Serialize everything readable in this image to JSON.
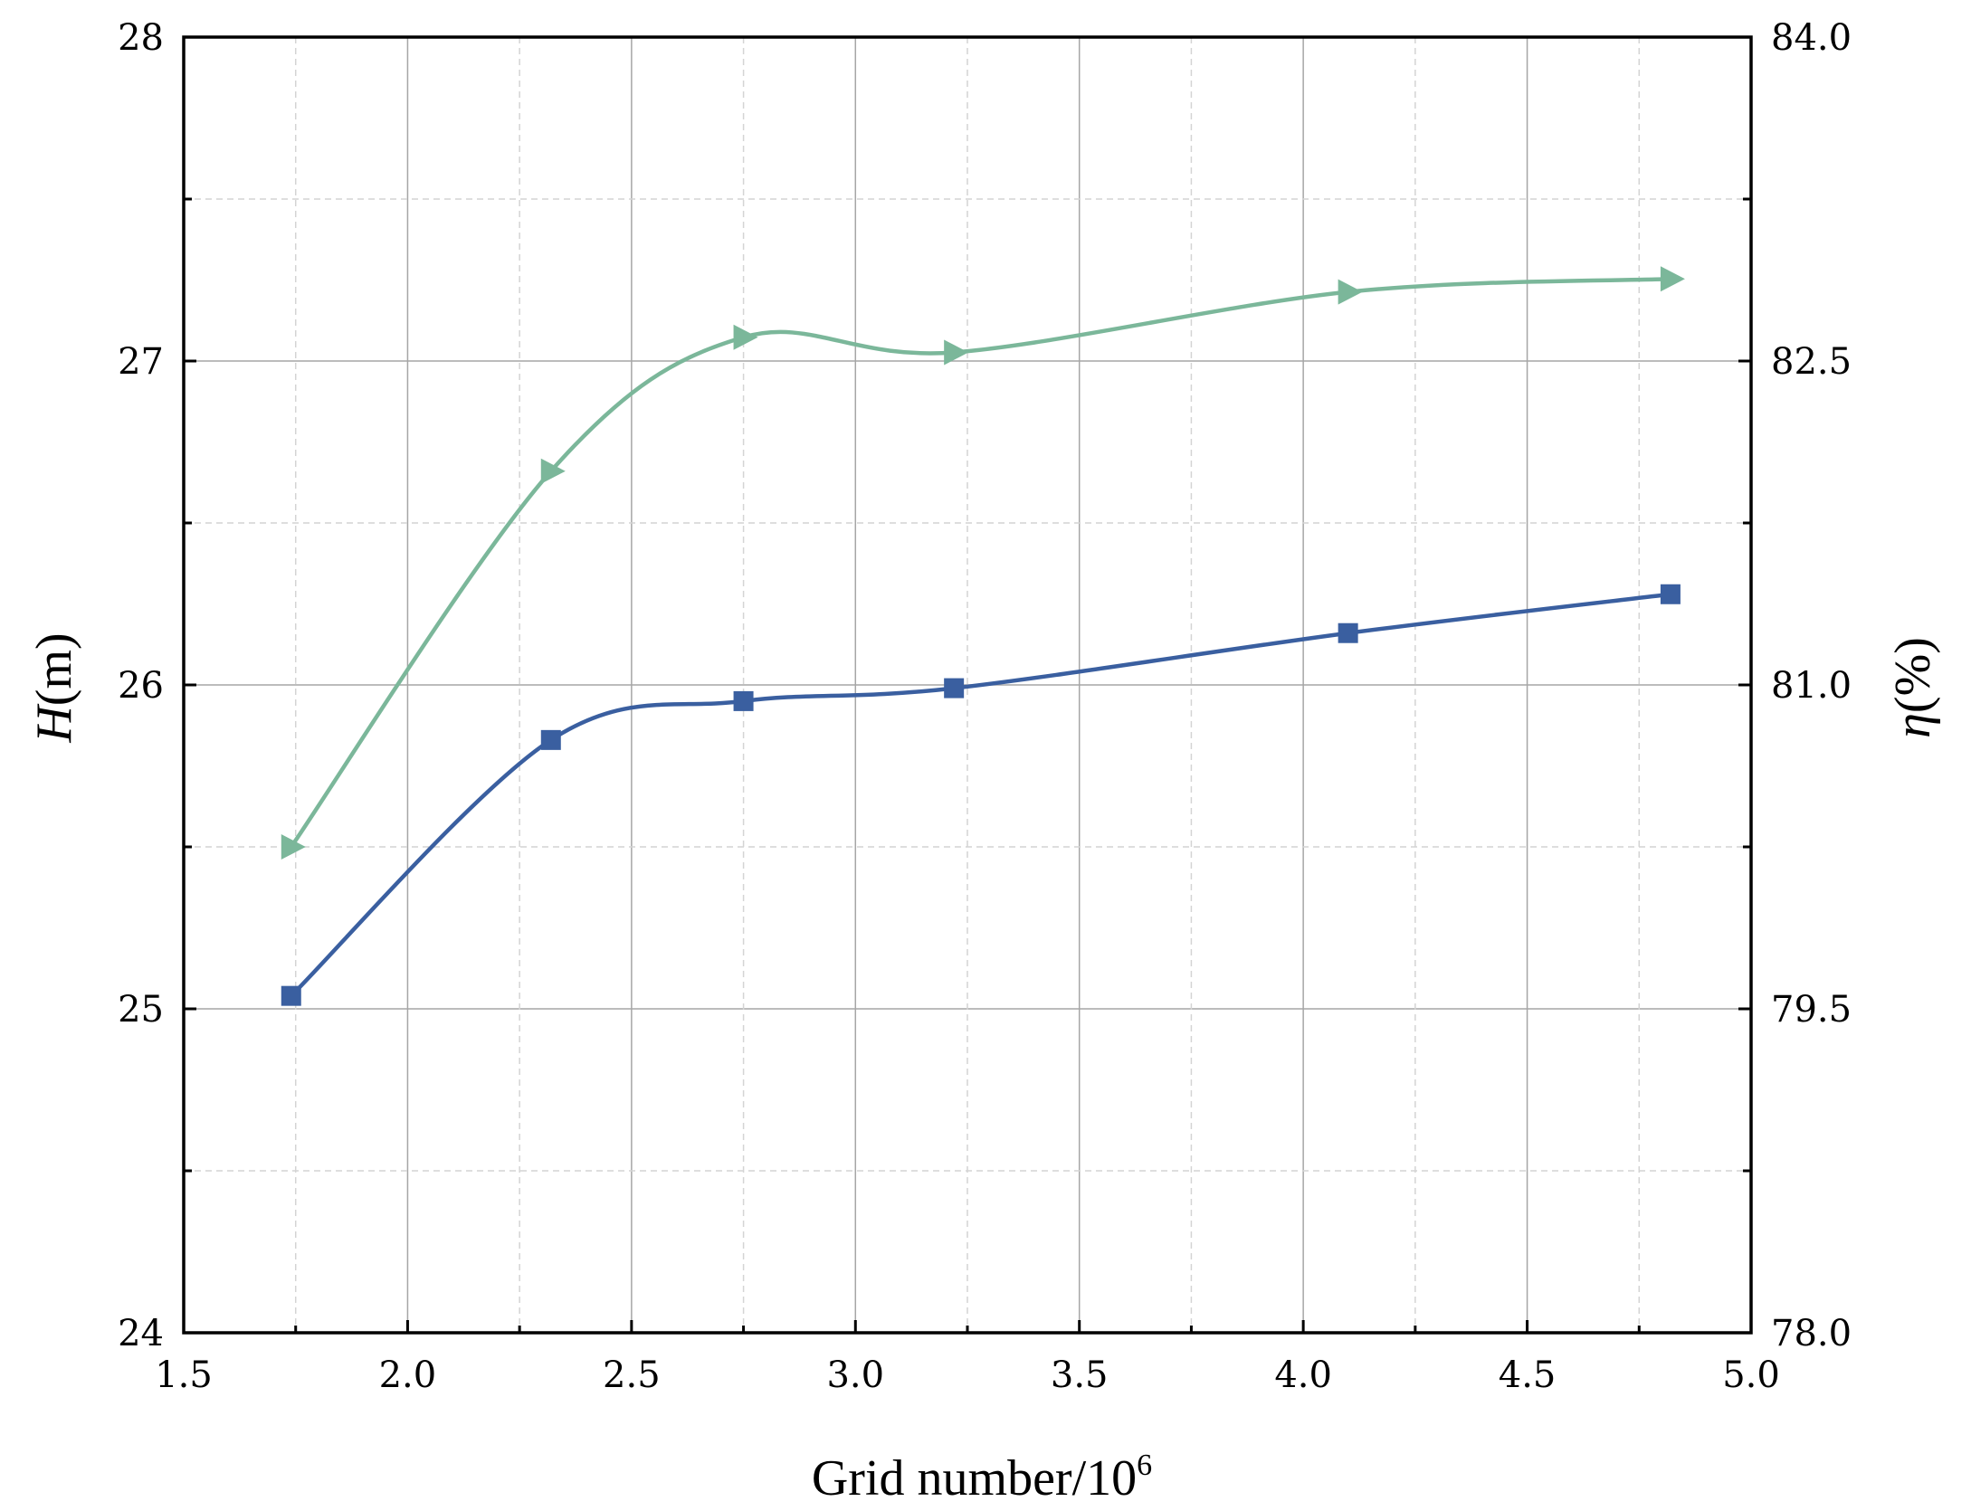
{
  "chart_data": {
    "type": "line",
    "xlabel": "Grid number/10",
    "xlabel_superscript": "6",
    "ylabel_left_var": "H",
    "ylabel_left_unit": "(m)",
    "ylabel_right_var": "η",
    "ylabel_right_unit": "(%)",
    "xlim": [
      1.5,
      5.0
    ],
    "ylim_left": [
      24,
      28
    ],
    "ylim_right": [
      78.0,
      84.0
    ],
    "x_ticks": [
      "1.5",
      "2.0",
      "2.5",
      "3.0",
      "3.5",
      "4.0",
      "4.5",
      "5.0"
    ],
    "y_left_ticks": [
      "24",
      "25",
      "26",
      "27",
      "28"
    ],
    "y_right_ticks": [
      "78.0",
      "79.5",
      "81.0",
      "82.5",
      "84.0"
    ],
    "grid": true,
    "legend": "none",
    "series": [
      {
        "axis": "left",
        "marker": "square",
        "color": "#3a5fa0",
        "x": [
          1.74,
          2.32,
          2.75,
          3.22,
          4.1,
          4.82
        ],
        "values": [
          25.04,
          25.83,
          25.95,
          25.99,
          26.16,
          26.28
        ]
      },
      {
        "axis": "right",
        "marker": "triangle-right",
        "color": "#7bb79a",
        "x": [
          1.74,
          2.32,
          2.75,
          3.22,
          4.1,
          4.82
        ],
        "values": [
          80.25,
          81.99,
          82.61,
          82.54,
          82.82,
          82.88
        ]
      }
    ]
  }
}
